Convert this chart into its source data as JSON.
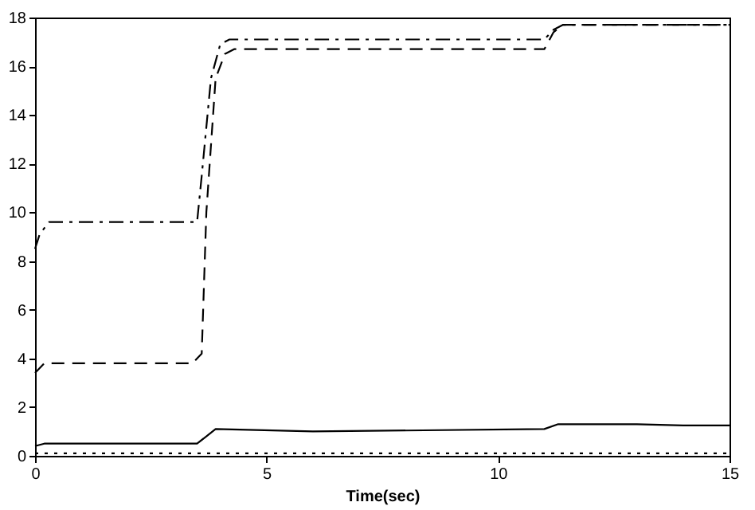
{
  "chart_data": {
    "type": "line",
    "xlabel": "Time(sec)",
    "xlim": [
      0,
      15
    ],
    "xticks": [
      0,
      5,
      10,
      15
    ],
    "ylim": [
      0,
      18
    ],
    "yticks": [
      0,
      2,
      4,
      6,
      8,
      10,
      12,
      14,
      16,
      18
    ],
    "grid": false,
    "marker": "none",
    "series": [
      {
        "color": "#000000",
        "line_style": "dashdot",
        "x": [
          0,
          0.1,
          0.3,
          3.5,
          3.6,
          3.8,
          4.0,
          4.2,
          11.0,
          11.2,
          11.4,
          15
        ],
        "values": [
          8.5,
          9.1,
          9.6,
          9.6,
          11.5,
          15.5,
          16.9,
          17.1,
          17.1,
          17.5,
          17.7,
          17.7
        ]
      },
      {
        "color": "#000000",
        "line_style": "dashed",
        "x": [
          0,
          0.2,
          3.4,
          3.6,
          3.7,
          3.9,
          4.1,
          4.3,
          11.0,
          11.2,
          11.4,
          15
        ],
        "values": [
          3.4,
          3.8,
          3.8,
          4.2,
          10.0,
          15.5,
          16.5,
          16.7,
          16.7,
          17.4,
          17.7,
          17.7
        ]
      },
      {
        "color": "#000000",
        "line_style": "solid",
        "x": [
          0,
          0.2,
          3.5,
          3.7,
          3.9,
          6.0,
          11.0,
          11.3,
          13.0,
          14.0,
          15
        ],
        "values": [
          0.4,
          0.5,
          0.5,
          0.8,
          1.1,
          1.0,
          1.1,
          1.3,
          1.3,
          1.25,
          1.25
        ]
      },
      {
        "color": "#000000",
        "line_style": "dotted",
        "x": [
          0,
          15
        ],
        "values": [
          0.1,
          0.1
        ]
      }
    ]
  }
}
